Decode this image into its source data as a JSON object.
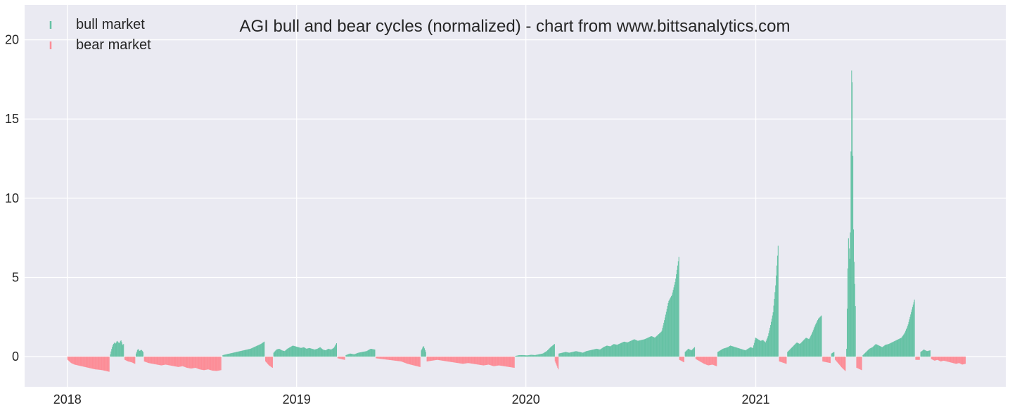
{
  "chart_data": {
    "type": "bar",
    "title": "AGI bull and bear cycles (normalized)  - chart from www.bittsanalytics.com",
    "xlabel": "",
    "ylabel": "",
    "xlim": [
      "2017-10-25",
      "2022-02-03"
    ],
    "ylim": [
      -1.9,
      22.2
    ],
    "yticks": [
      0,
      5,
      10,
      15,
      20
    ],
    "xticks": [
      "2018",
      "2019",
      "2020",
      "2021"
    ],
    "grid": true,
    "legend_position": "top-left",
    "colors": {
      "bull": "#66c2a5",
      "bear": "#fc8d97",
      "background": "#eaeaf2",
      "grid": "#ffffff"
    },
    "series": [
      {
        "name": "bull market",
        "color": "#66c2a5",
        "segments": [
          {
            "start": "2018-03-10",
            "end": "2018-03-31",
            "values": [
              0.15,
              0.4,
              0.6,
              0.75,
              0.85,
              0.9,
              0.8,
              0.95,
              1.0,
              0.9,
              0.85,
              0.95,
              1.05,
              0.9,
              0.7,
              0.8
            ]
          },
          {
            "start": "2018-04-20",
            "end": "2018-05-01",
            "values": [
              0.2,
              0.5,
              0.35,
              0.45,
              0.3
            ]
          },
          {
            "start": "2018-09-05",
            "end": "2018-11-10",
            "values": [
              0.1,
              0.15,
              0.2,
              0.25,
              0.3,
              0.35,
              0.4,
              0.45,
              0.5,
              0.6,
              0.7,
              0.8,
              0.95
            ]
          },
          {
            "start": "2018-11-25",
            "end": "2019-03-05",
            "values": [
              0.25,
              0.45,
              0.5,
              0.4,
              0.35,
              0.5,
              0.6,
              0.7,
              0.65,
              0.6,
              0.55,
              0.6,
              0.5,
              0.55,
              0.5,
              0.45,
              0.5,
              0.6,
              0.45,
              0.4,
              0.5,
              0.45,
              0.55,
              0.85
            ]
          },
          {
            "start": "2019-03-20",
            "end": "2019-05-05",
            "values": [
              0.1,
              0.2,
              0.15,
              0.25,
              0.3,
              0.35,
              0.5,
              0.45
            ]
          },
          {
            "start": "2019-07-18",
            "end": "2019-07-25",
            "values": [
              0.4,
              0.7,
              0.3
            ]
          },
          {
            "start": "2019-12-15",
            "end": "2020-02-15",
            "values": [
              0.05,
              0.1,
              0.1,
              0.08,
              0.12,
              0.1,
              0.15,
              0.2,
              0.35,
              0.6,
              0.8
            ]
          },
          {
            "start": "2020-02-22",
            "end": "2020-08-31",
            "values": [
              0.2,
              0.25,
              0.3,
              0.25,
              0.3,
              0.35,
              0.3,
              0.25,
              0.35,
              0.4,
              0.45,
              0.5,
              0.45,
              0.6,
              0.7,
              0.65,
              0.8,
              0.75,
              0.85,
              0.95,
              0.9,
              1.0,
              1.1,
              1.0,
              1.05,
              1.1,
              1.2,
              1.3,
              1.2,
              1.4,
              1.6,
              2.5,
              3.5,
              3.9,
              4.8,
              6.3
            ]
          },
          {
            "start": "2020-09-10",
            "end": "2020-09-25",
            "values": [
              0.3,
              0.5,
              0.4,
              0.6
            ]
          },
          {
            "start": "2020-11-01",
            "end": "2021-02-05",
            "values": [
              0.3,
              0.4,
              0.5,
              0.55,
              0.6,
              0.7,
              0.65,
              0.6,
              0.55,
              0.5,
              0.45,
              0.4,
              0.5,
              0.6,
              0.55,
              1.2,
              1.1,
              1.0,
              1.05,
              0.9,
              1.3,
              2.0,
              2.8,
              4.5,
              7.0
            ]
          },
          {
            "start": "2021-02-20",
            "end": "2021-04-15",
            "values": [
              0.3,
              0.5,
              0.7,
              0.9,
              0.8,
              1.0,
              1.2,
              1.1,
              1.5,
              2.0,
              2.4,
              2.6
            ]
          },
          {
            "start": "2021-05-01",
            "end": "2021-05-05",
            "values": [
              0.2,
              0.3
            ]
          },
          {
            "start": "2021-05-25",
            "end": "2021-06-08",
            "values": [
              0.5,
              7.6,
              5.8,
              20.1,
              7.1,
              3.2
            ]
          },
          {
            "start": "2021-06-20",
            "end": "2021-09-10",
            "values": [
              0.1,
              0.3,
              0.5,
              0.6,
              0.8,
              0.7,
              0.6,
              0.75,
              0.8,
              0.9,
              1.0,
              1.1,
              1.2,
              1.5,
              2.0,
              2.8,
              3.6
            ]
          },
          {
            "start": "2021-09-20",
            "end": "2021-10-05",
            "values": [
              0.3,
              0.45,
              0.35,
              0.4
            ]
          }
        ]
      },
      {
        "name": "bear market",
        "color": "#fc8d97",
        "segments": [
          {
            "start": "2018-01-01",
            "end": "2018-03-08",
            "values": [
              -0.2,
              -0.4,
              -0.5,
              -0.55,
              -0.6,
              -0.65,
              -0.7,
              -0.75,
              -0.8,
              -0.82,
              -0.85,
              -0.9,
              -0.95
            ]
          },
          {
            "start": "2018-04-02",
            "end": "2018-04-18",
            "values": [
              -0.2,
              -0.3,
              -0.35,
              -0.45
            ]
          },
          {
            "start": "2018-05-03",
            "end": "2018-09-02",
            "values": [
              -0.3,
              -0.4,
              -0.45,
              -0.5,
              -0.55,
              -0.5,
              -0.55,
              -0.6,
              -0.65,
              -0.6,
              -0.7,
              -0.75,
              -0.7,
              -0.8,
              -0.85,
              -0.8,
              -0.88,
              -0.9,
              -0.85
            ]
          },
          {
            "start": "2018-11-12",
            "end": "2018-11-23",
            "values": [
              -0.3,
              -0.55,
              -0.7
            ]
          },
          {
            "start": "2019-03-07",
            "end": "2019-03-18",
            "values": [
              -0.1,
              -0.15,
              -0.2
            ]
          },
          {
            "start": "2019-05-07",
            "end": "2019-07-16",
            "values": [
              -0.1,
              -0.15,
              -0.2,
              -0.25,
              -0.3,
              -0.45,
              -0.55,
              -0.65
            ]
          },
          {
            "start": "2019-07-27",
            "end": "2019-12-13",
            "values": [
              -0.3,
              -0.25,
              -0.2,
              -0.25,
              -0.3,
              -0.35,
              -0.4,
              -0.45,
              -0.4,
              -0.45,
              -0.5,
              -0.55,
              -0.5,
              -0.6,
              -0.55,
              -0.6,
              -0.65,
              -0.7
            ]
          },
          {
            "start": "2020-02-16",
            "end": "2020-02-21",
            "values": [
              -0.3,
              -0.8
            ]
          },
          {
            "start": "2020-09-01",
            "end": "2020-09-08",
            "values": [
              -0.2,
              -0.35
            ]
          },
          {
            "start": "2020-09-27",
            "end": "2020-10-30",
            "values": [
              -0.15,
              -0.3,
              -0.45,
              -0.55,
              -0.5,
              -0.6
            ]
          },
          {
            "start": "2021-02-07",
            "end": "2021-02-18",
            "values": [
              -0.3,
              -0.45
            ]
          },
          {
            "start": "2021-04-17",
            "end": "2021-04-29",
            "values": [
              -0.3,
              -0.4
            ]
          },
          {
            "start": "2021-05-07",
            "end": "2021-05-23",
            "values": [
              -0.2,
              -0.45,
              -0.7,
              -0.9
            ]
          },
          {
            "start": "2021-06-10",
            "end": "2021-06-18",
            "values": [
              -0.7,
              -0.85
            ]
          },
          {
            "start": "2021-09-12",
            "end": "2021-09-18",
            "values": [
              -0.2
            ]
          },
          {
            "start": "2021-10-07",
            "end": "2021-11-30",
            "values": [
              -0.15,
              -0.25,
              -0.2,
              -0.3,
              -0.25,
              -0.3,
              -0.35,
              -0.4,
              -0.45,
              -0.4,
              -0.5,
              -0.45
            ]
          }
        ]
      }
    ]
  }
}
